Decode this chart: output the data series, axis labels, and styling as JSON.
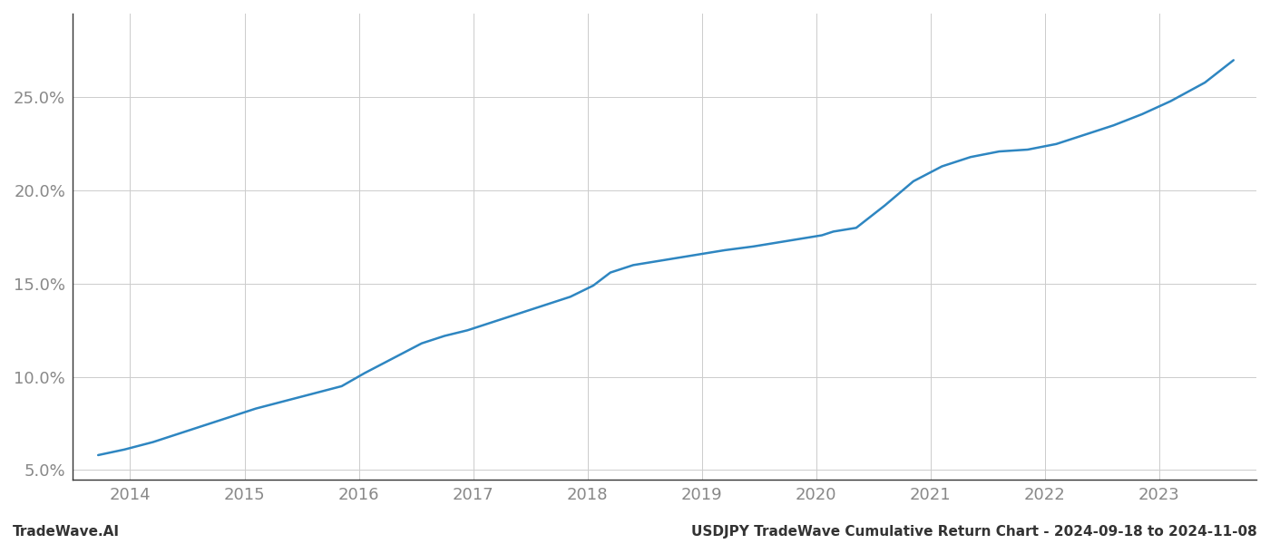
{
  "footer_left": "TradeWave.AI",
  "footer_right": "USDJPY TradeWave Cumulative Return Chart - 2024-09-18 to 2024-11-08",
  "line_color": "#2e86c1",
  "background_color": "#ffffff",
  "grid_color": "#cccccc",
  "x_years": [
    2014,
    2015,
    2016,
    2017,
    2018,
    2019,
    2020,
    2021,
    2022,
    2023
  ],
  "x_values": [
    2013.72,
    2013.95,
    2014.2,
    2014.45,
    2014.7,
    2014.9,
    2015.1,
    2015.35,
    2015.6,
    2015.85,
    2016.05,
    2016.3,
    2016.55,
    2016.75,
    2016.95,
    2017.2,
    2017.45,
    2017.65,
    2017.85,
    2018.05,
    2018.2,
    2018.4,
    2018.6,
    2018.8,
    2019.0,
    2019.2,
    2019.45,
    2019.65,
    2019.85,
    2020.05,
    2020.15,
    2020.35,
    2020.6,
    2020.85,
    2021.1,
    2021.35,
    2021.6,
    2021.85,
    2022.1,
    2022.35,
    2022.6,
    2022.85,
    2023.1,
    2023.4,
    2023.65
  ],
  "y_values": [
    5.8,
    6.1,
    6.5,
    7.0,
    7.5,
    7.9,
    8.3,
    8.7,
    9.1,
    9.5,
    10.2,
    11.0,
    11.8,
    12.2,
    12.5,
    13.0,
    13.5,
    13.9,
    14.3,
    14.9,
    15.6,
    16.0,
    16.2,
    16.4,
    16.6,
    16.8,
    17.0,
    17.2,
    17.4,
    17.6,
    17.8,
    18.0,
    19.2,
    20.5,
    21.3,
    21.8,
    22.1,
    22.2,
    22.5,
    23.0,
    23.5,
    24.1,
    24.8,
    25.8,
    27.0
  ],
  "ylim": [
    4.5,
    29.5
  ],
  "yticks": [
    5.0,
    10.0,
    15.0,
    20.0,
    25.0
  ],
  "xlim": [
    2013.5,
    2023.85
  ],
  "line_width": 1.8,
  "footer_fontsize": 11,
  "tick_fontsize": 13,
  "tick_color": "#888888",
  "left_spine_color": "#333333",
  "bottom_spine_color": "#333333"
}
